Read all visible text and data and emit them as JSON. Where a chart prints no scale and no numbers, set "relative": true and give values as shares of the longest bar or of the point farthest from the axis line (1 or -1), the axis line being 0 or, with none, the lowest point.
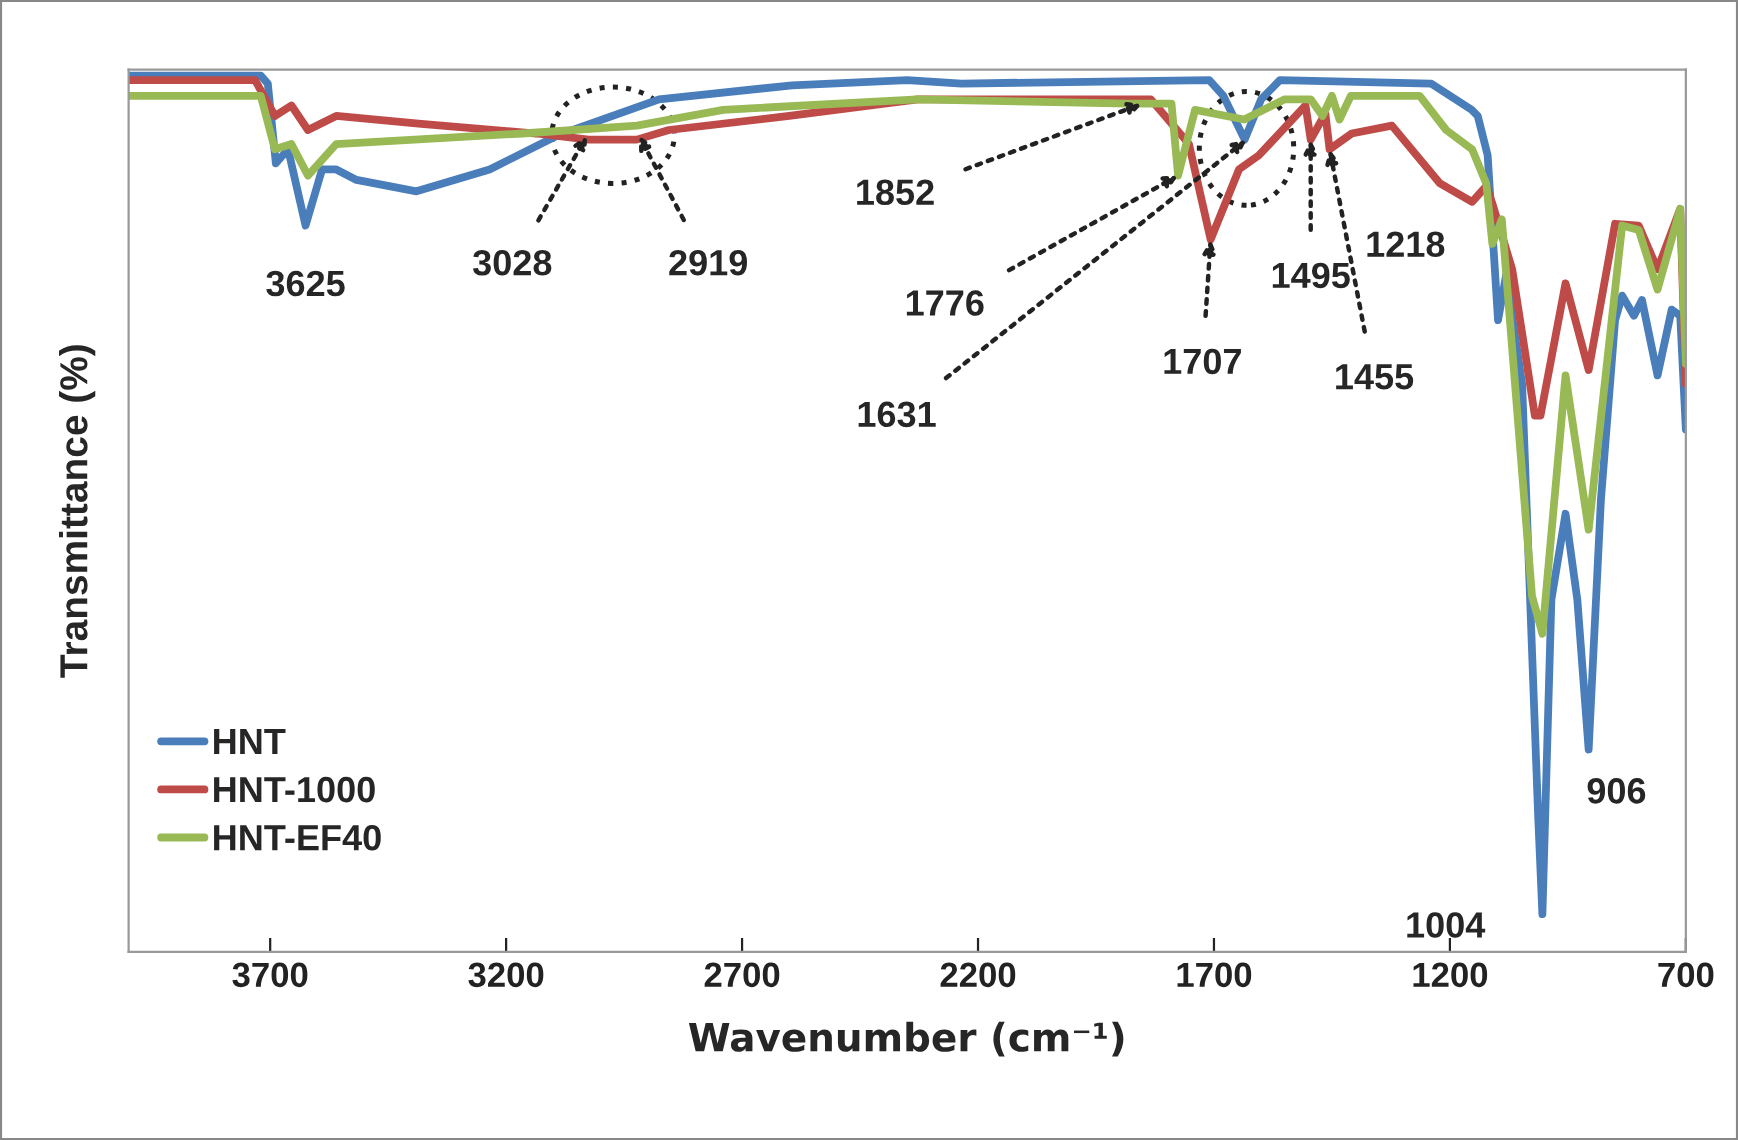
{
  "chart_data": {
    "type": "line",
    "relative": true,
    "xlabel": "Wavenumber (cm⁻¹)",
    "ylabel": "Transmittance (%)",
    "xlim": [
      4000,
      700
    ],
    "xticks": [
      3700,
      3200,
      2700,
      2200,
      1700,
      1200,
      700
    ],
    "legend": "bottom left",
    "grid": false,
    "marker": "none",
    "line_style": "solid",
    "series": [
      {
        "name": "HNT",
        "color": "#4a7ebb",
        "x": [
          4000,
          3720,
          3705,
          3688,
          3662,
          3625,
          3590,
          3560,
          3517,
          3390,
          3235,
          3090,
          2876,
          2594,
          2350,
          2235,
          1710,
          1680,
          1635,
          1600,
          1560,
          1240,
          1154,
          1141,
          1120,
          1098,
          1081,
          1047,
          1013,
          1004,
          985,
          955,
          930,
          906,
          880,
          850,
          835,
          810,
          793,
          760,
          730,
          712,
          700
        ],
        "values": [
          1.0,
          1.0,
          0.991,
          0.9,
          0.916,
          0.829,
          0.893,
          0.893,
          0.881,
          0.868,
          0.893,
          0.932,
          0.973,
          0.989,
          0.995,
          0.991,
          0.995,
          0.977,
          0.927,
          0.973,
          0.995,
          0.991,
          0.961,
          0.954,
          0.909,
          0.721,
          0.772,
          0.648,
          0.155,
          0.043,
          0.402,
          0.5,
          0.402,
          0.231,
          0.516,
          0.721,
          0.749,
          0.726,
          0.744,
          0.658,
          0.733,
          0.726,
          0.596
        ]
      },
      {
        "name": "HNT-1000",
        "color": "#be4b48",
        "x": [
          4000,
          3732,
          3690,
          3655,
          3620,
          3560,
          3380,
          3136,
          3025,
          2923,
          2855,
          2600,
          2328,
          1834,
          1753,
          1707,
          1647,
          1605,
          1506,
          1495,
          1464,
          1455,
          1408,
          1323,
          1221,
          1153,
          1123,
          1110,
          1068,
          1020,
          1008,
          955,
          906,
          850,
          800,
          760,
          712,
          700
        ],
        "values": [
          0.995,
          0.995,
          0.954,
          0.966,
          0.938,
          0.954,
          0.945,
          0.934,
          0.927,
          0.927,
          0.938,
          0.954,
          0.973,
          0.973,
          0.922,
          0.813,
          0.893,
          0.909,
          0.966,
          0.927,
          0.957,
          0.916,
          0.934,
          0.943,
          0.877,
          0.856,
          0.874,
          0.854,
          0.779,
          0.612,
          0.612,
          0.763,
          0.664,
          0.831,
          0.829,
          0.779,
          0.848,
          0.648
        ]
      },
      {
        "name": "HNT-EF40",
        "color": "#98b954",
        "x": [
          4000,
          3720,
          3690,
          3655,
          3620,
          3560,
          3165,
          2923,
          2740,
          2328,
          1880,
          1790,
          1776,
          1740,
          1636,
          1550,
          1495,
          1470,
          1450,
          1434,
          1410,
          1264,
          1208,
          1153,
          1123,
          1110,
          1090,
          1026,
          1004,
          955,
          906,
          835,
          800,
          760,
          712,
          700
        ],
        "values": [
          0.977,
          0.977,
          0.916,
          0.922,
          0.886,
          0.922,
          0.934,
          0.943,
          0.961,
          0.973,
          0.968,
          0.968,
          0.886,
          0.961,
          0.95,
          0.973,
          0.973,
          0.954,
          0.977,
          0.95,
          0.977,
          0.977,
          0.938,
          0.916,
          0.877,
          0.808,
          0.836,
          0.406,
          0.363,
          0.658,
          0.482,
          0.829,
          0.824,
          0.756,
          0.848,
          0.671
        ]
      }
    ],
    "annotations": [
      {
        "text": "3625",
        "x": 3625,
        "y": 0.829
      },
      {
        "text": "3028",
        "x": 3028,
        "y": 0.932
      },
      {
        "text": "2919",
        "x": 2919,
        "y": 0.932
      },
      {
        "text": "1852",
        "x": 1852,
        "y": 0.968
      },
      {
        "text": "1776",
        "x": 1776,
        "y": 0.886
      },
      {
        "text": "1631",
        "x": 1631,
        "y": 0.927
      },
      {
        "text": "1707",
        "x": 1707,
        "y": 0.813
      },
      {
        "text": "1495",
        "x": 1495,
        "y": 0.927
      },
      {
        "text": "1455",
        "x": 1455,
        "y": 0.916
      },
      {
        "text": "1218",
        "x": 1218,
        "y": 0.877
      },
      {
        "text": "1004",
        "x": 1004,
        "y": 0.043
      },
      {
        "text": "906",
        "x": 906,
        "y": 0.231
      }
    ]
  }
}
